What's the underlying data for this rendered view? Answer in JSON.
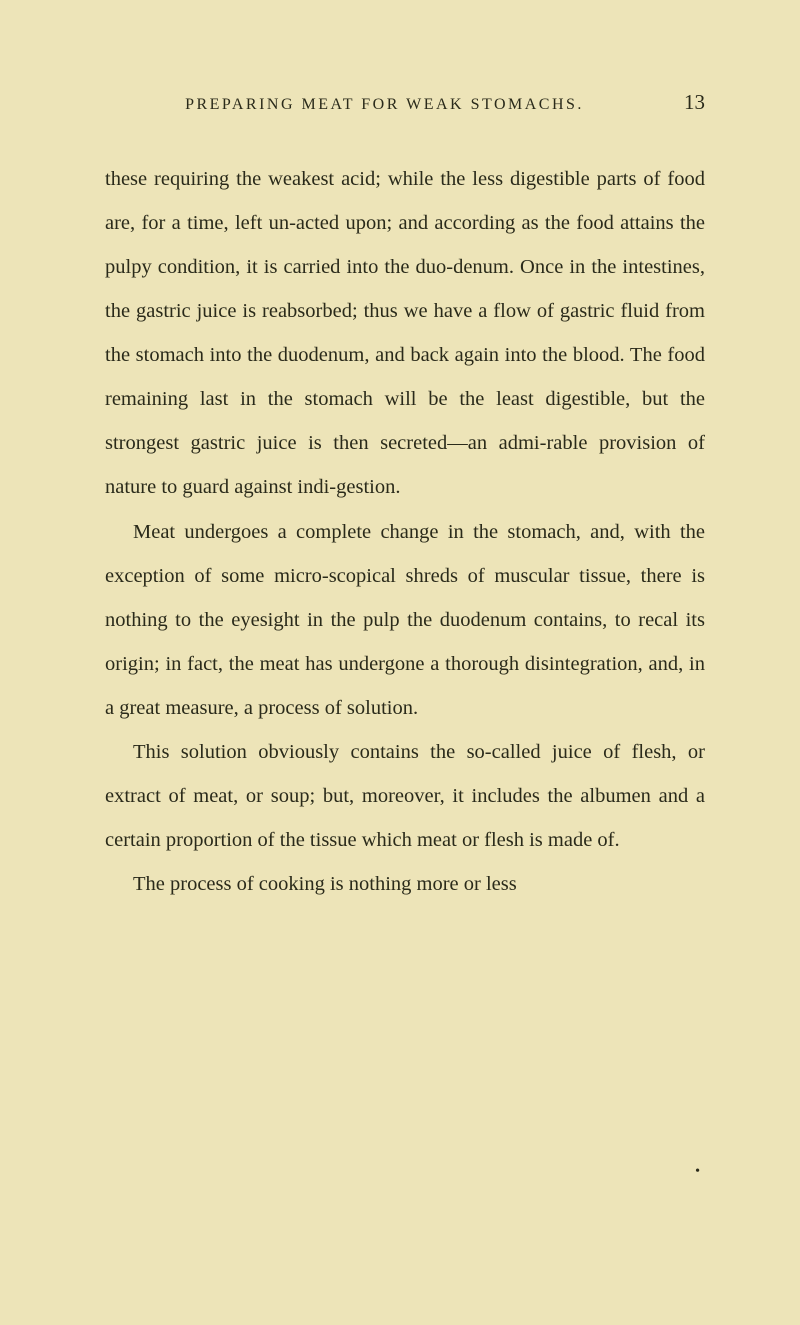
{
  "header": {
    "running_title": "PREPARING MEAT FOR WEAK STOMACHS.",
    "page_number": "13"
  },
  "paragraphs": {
    "p1": "these requiring the weakest acid; while the less digestible parts of food are, for a time, left un-acted upon; and according as the food attains the pulpy condition, it is carried into the duo-denum. Once in the intestines, the gastric juice is reabsorbed; thus we have a flow of gastric fluid from the stomach into the duodenum, and back again into the blood. The food remaining last in the stomach will be the least digestible, but the strongest gastric juice is then secreted—an admi-rable provision of nature to guard against indi-gestion.",
    "p2": "Meat undergoes a complete change in the stomach, and, with the exception of some micro-scopical shreds of muscular tissue, there is nothing to the eyesight in the pulp the duodenum contains, to recal its origin; in fact, the meat has undergone a thorough disintegration, and, in a great measure, a process of solution.",
    "p3": "This solution obviously contains the so-called juice of flesh, or extract of meat, or soup; but, moreover, it includes the albumen and a certain proportion of the tissue which meat or flesh is made of.",
    "p4": "The process of cooking is nothing more or less"
  },
  "colors": {
    "background": "#ede4b8",
    "text": "#2a2a1a"
  },
  "typography": {
    "body_fontsize": 20.5,
    "header_fontsize": 16,
    "pagenum_fontsize": 21,
    "line_height": 2.15,
    "font_family": "Georgia, Times New Roman, serif"
  }
}
